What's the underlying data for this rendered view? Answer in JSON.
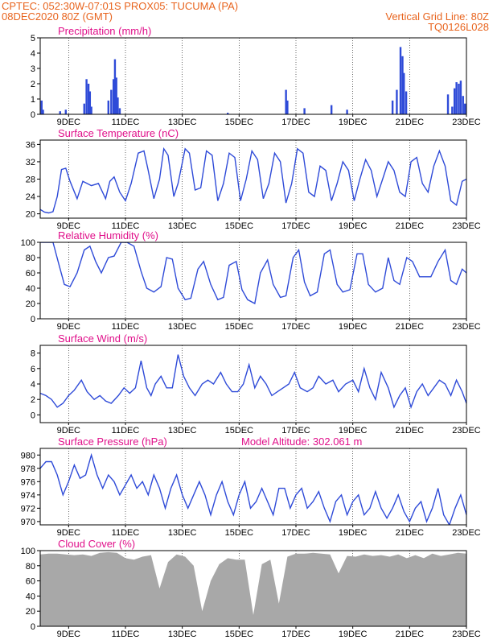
{
  "header": {
    "line1_left": "CPTEC:   052:30W-07:01S   PROX05: TUCUMA (PA)",
    "line2_left": "08DEC2020 80Z (GMT)",
    "line2_right": "Vertical Grid Line: 80Z",
    "line3_right": "TQ0126L028"
  },
  "colors": {
    "header": "#e8641e",
    "title": "#e0108a",
    "series": "#2f4bd8",
    "cloud": "#a8a8a8"
  },
  "x_axis": {
    "labels": [
      "9DEC",
      "11DEC",
      "13DEC",
      "15DEC",
      "17DEC",
      "19DEC",
      "21DEC",
      "23DEC"
    ],
    "label_days": [
      9,
      11,
      13,
      15,
      17,
      19,
      21,
      23
    ],
    "start_day": 8.0,
    "end_day": 23.0
  },
  "chart_data": [
    {
      "id": "precip",
      "type": "bar",
      "title": "Precipitation (mm/h)",
      "ylim": [
        0,
        5
      ],
      "yticks": [
        0,
        1,
        2,
        3,
        4,
        5
      ],
      "x": [
        8.05,
        8.1,
        8.7,
        8.9,
        9.55,
        9.63,
        9.7,
        9.75,
        9.8,
        10.4,
        10.5,
        10.58,
        10.63,
        10.68,
        10.73,
        10.8,
        14.6,
        16.65,
        16.7,
        17.3,
        18.25,
        18.8,
        20.4,
        20.55,
        20.68,
        20.75,
        20.8,
        20.88,
        22.35,
        22.5,
        22.58,
        22.65,
        22.73,
        22.8,
        22.88,
        22.95
      ],
      "values": [
        0.9,
        0.3,
        0.2,
        0.3,
        0.7,
        2.3,
        2.0,
        1.5,
        0.5,
        0.9,
        1.6,
        2.3,
        3.6,
        2.4,
        1.1,
        0.4,
        0.1,
        1.6,
        0.9,
        0.4,
        0.6,
        0.3,
        0.9,
        1.6,
        4.4,
        3.8,
        2.7,
        1.5,
        1.3,
        0.5,
        1.7,
        2.1,
        2.0,
        2.2,
        1.2,
        0.7
      ]
    },
    {
      "id": "temp",
      "type": "line",
      "title": "Surface Temperature (nC)",
      "ylim": [
        19,
        37
      ],
      "yticks": [
        20,
        24,
        28,
        32,
        36
      ],
      "x": [
        8.0,
        8.15,
        8.3,
        8.45,
        8.6,
        8.75,
        8.9,
        9.05,
        9.3,
        9.5,
        9.65,
        9.8,
        10.05,
        10.3,
        10.45,
        10.6,
        10.8,
        11.0,
        11.2,
        11.45,
        11.65,
        11.8,
        12.0,
        12.2,
        12.35,
        12.5,
        12.7,
        12.85,
        13.1,
        13.25,
        13.45,
        13.65,
        13.85,
        14.05,
        14.25,
        14.45,
        14.65,
        14.85,
        15.05,
        15.25,
        15.45,
        15.65,
        15.85,
        16.05,
        16.25,
        16.45,
        16.65,
        16.85,
        17.05,
        17.25,
        17.45,
        17.65,
        17.85,
        18.05,
        18.25,
        18.45,
        18.65,
        18.85,
        19.05,
        19.25,
        19.45,
        19.65,
        19.85,
        20.05,
        20.25,
        20.45,
        20.65,
        20.85,
        21.05,
        21.25,
        21.45,
        21.65,
        21.85,
        22.05,
        22.25,
        22.45,
        22.65,
        22.85,
        23.0
      ],
      "values": [
        21,
        20.4,
        20.2,
        20.5,
        24,
        30.2,
        30.5,
        27.5,
        23.5,
        27.5,
        27,
        26.5,
        27,
        23.5,
        27.5,
        28.5,
        25,
        23,
        27,
        34,
        34.5,
        30,
        23.5,
        28,
        35,
        33.5,
        24,
        27,
        35,
        34,
        25.5,
        26,
        34.5,
        33.5,
        23,
        27,
        34,
        33,
        23,
        28,
        34.5,
        32.5,
        23.5,
        27,
        34,
        32,
        22.5,
        27,
        35,
        34,
        25,
        24,
        31,
        30,
        23,
        27,
        32,
        30,
        23,
        28,
        32.5,
        30,
        24,
        28,
        32,
        30,
        25,
        24,
        32,
        33,
        27,
        25,
        31,
        34.5,
        31,
        23,
        22,
        27.5,
        28
      ]
    },
    {
      "id": "rh",
      "type": "line",
      "title": "Relative Humidity (%)",
      "ylim": [
        0,
        100
      ],
      "yticks": [
        0,
        20,
        40,
        60,
        80,
        100
      ],
      "x": [
        8.0,
        8.25,
        8.45,
        8.65,
        8.85,
        9.05,
        9.3,
        9.55,
        9.75,
        9.95,
        10.15,
        10.4,
        10.6,
        10.85,
        11.05,
        11.3,
        11.55,
        11.75,
        12.0,
        12.25,
        12.45,
        12.65,
        12.85,
        13.1,
        13.3,
        13.55,
        13.75,
        14.0,
        14.25,
        14.45,
        14.65,
        14.9,
        15.1,
        15.3,
        15.55,
        15.75,
        16.0,
        16.2,
        16.45,
        16.65,
        16.9,
        17.1,
        17.3,
        17.5,
        17.75,
        18.0,
        18.2,
        18.45,
        18.65,
        18.9,
        19.15,
        19.35,
        19.55,
        19.8,
        20.05,
        20.25,
        20.45,
        20.65,
        20.9,
        21.1,
        21.35,
        21.55,
        21.75,
        22.0,
        22.25,
        22.45,
        22.65,
        22.85,
        23.0
      ],
      "values": [
        100,
        100,
        100,
        72,
        45,
        42,
        60,
        90,
        95,
        75,
        60,
        80,
        82,
        100,
        100,
        95,
        62,
        40,
        35,
        42,
        80,
        78,
        40,
        25,
        27,
        65,
        75,
        45,
        25,
        28,
        70,
        75,
        38,
        25,
        20,
        60,
        77,
        45,
        28,
        30,
        80,
        90,
        48,
        30,
        35,
        85,
        90,
        45,
        35,
        38,
        85,
        85,
        45,
        35,
        40,
        80,
        50,
        45,
        80,
        75,
        55,
        55,
        55,
        75,
        90,
        50,
        45,
        65,
        60
      ]
    },
    {
      "id": "wind",
      "type": "line",
      "title": "Surface Wind (m/s)",
      "ylim": [
        -1,
        9
      ],
      "yticks": [
        0,
        2,
        4,
        6,
        8
      ],
      "x": [
        8.0,
        8.2,
        8.4,
        8.6,
        8.8,
        9.0,
        9.2,
        9.45,
        9.65,
        9.9,
        10.1,
        10.3,
        10.5,
        10.75,
        10.95,
        11.15,
        11.35,
        11.55,
        11.75,
        11.9,
        12.05,
        12.25,
        12.45,
        12.65,
        12.85,
        13.05,
        13.25,
        13.45,
        13.7,
        13.9,
        14.1,
        14.35,
        14.55,
        14.75,
        14.95,
        15.15,
        15.35,
        15.55,
        15.75,
        15.95,
        16.15,
        16.35,
        16.55,
        16.75,
        16.95,
        17.15,
        17.4,
        17.6,
        17.8,
        18.05,
        18.3,
        18.5,
        18.75,
        19.0,
        19.2,
        19.4,
        19.6,
        19.8,
        20.0,
        20.25,
        20.45,
        20.65,
        20.85,
        21.05,
        21.25,
        21.45,
        21.65,
        21.85,
        22.05,
        22.25,
        22.45,
        22.65,
        22.85,
        23.0
      ],
      "values": [
        2.8,
        2.5,
        2.0,
        1.0,
        1.5,
        2.5,
        3.2,
        4.5,
        3.0,
        2.0,
        2.5,
        1.8,
        1.5,
        2.5,
        3.5,
        2.8,
        3.5,
        7.0,
        3.5,
        2.5,
        4.0,
        5.0,
        3.5,
        3.5,
        7.8,
        5.0,
        3.5,
        2.5,
        4.0,
        4.5,
        4.0,
        5.5,
        4.0,
        3.0,
        3.0,
        4.0,
        6.5,
        3.5,
        5.0,
        4.0,
        2.5,
        3.0,
        3.5,
        4.0,
        5.5,
        3.5,
        3.0,
        3.5,
        5.0,
        4.0,
        4.5,
        3.0,
        4.0,
        4.5,
        3.0,
        6.0,
        3.5,
        2.0,
        5.5,
        3.5,
        1.0,
        2.5,
        3.5,
        1.0,
        3.0,
        4.0,
        2.5,
        3.5,
        4.5,
        4.0,
        2.5,
        4.5,
        3.0,
        1.5
      ]
    },
    {
      "id": "pres",
      "type": "line",
      "title": "Surface Pressure (hPa)",
      "annotation": "Model Altitude: 302.061  m",
      "ylim": [
        969.5,
        981
      ],
      "yticks": [
        970,
        972,
        974,
        976,
        978,
        980
      ],
      "x": [
        8.0,
        8.2,
        8.4,
        8.6,
        8.8,
        9.0,
        9.2,
        9.4,
        9.6,
        9.8,
        10.0,
        10.2,
        10.4,
        10.6,
        10.8,
        11.0,
        11.2,
        11.4,
        11.6,
        11.8,
        12.0,
        12.2,
        12.4,
        12.6,
        12.8,
        13.0,
        13.2,
        13.4,
        13.6,
        13.8,
        14.0,
        14.2,
        14.4,
        14.6,
        14.8,
        15.0,
        15.2,
        15.4,
        15.6,
        15.8,
        16.0,
        16.2,
        16.4,
        16.6,
        16.8,
        17.0,
        17.2,
        17.4,
        17.6,
        17.8,
        18.0,
        18.2,
        18.4,
        18.6,
        18.8,
        19.0,
        19.2,
        19.4,
        19.6,
        19.8,
        20.0,
        20.2,
        20.4,
        20.6,
        20.8,
        21.0,
        21.2,
        21.4,
        21.6,
        21.8,
        22.0,
        22.2,
        22.4,
        22.6,
        22.8,
        23.0
      ],
      "values": [
        978,
        979,
        979,
        977,
        974,
        976,
        978.5,
        976.5,
        977,
        980,
        977,
        975,
        977,
        976,
        974,
        975.5,
        977,
        975,
        976,
        974,
        977,
        975,
        972,
        975,
        977,
        974,
        972,
        974,
        976,
        974,
        971,
        974,
        976,
        973,
        971,
        974,
        976,
        972,
        973,
        975,
        973,
        971,
        975,
        975,
        972,
        974,
        975,
        972,
        973,
        974.5,
        972,
        970,
        973,
        974,
        971,
        973,
        974,
        971,
        972,
        974.5,
        972,
        970.5,
        972,
        974,
        971.5,
        970,
        972,
        973,
        970,
        972,
        975,
        971,
        969.5,
        972,
        974,
        971
      ]
    },
    {
      "id": "cloud",
      "type": "area",
      "title": "Cloud Cover (%)",
      "ylim": [
        0,
        100
      ],
      "yticks": [
        0,
        20,
        40,
        60,
        80,
        100
      ],
      "x": [
        8.0,
        8.3,
        8.6,
        8.9,
        9.2,
        9.5,
        9.8,
        10.1,
        10.4,
        10.7,
        11.0,
        11.3,
        11.6,
        11.9,
        12.2,
        12.5,
        12.8,
        13.1,
        13.4,
        13.7,
        14.0,
        14.3,
        14.6,
        14.9,
        15.2,
        15.5,
        15.8,
        16.1,
        16.4,
        16.7,
        17.0,
        17.3,
        17.6,
        17.9,
        18.2,
        18.5,
        18.8,
        19.1,
        19.4,
        19.7,
        20.0,
        20.3,
        20.6,
        20.9,
        21.2,
        21.5,
        21.8,
        22.1,
        22.4,
        22.7,
        23.0
      ],
      "values": [
        95,
        96,
        96,
        95,
        94,
        95,
        93,
        97,
        98,
        97,
        90,
        88,
        92,
        94,
        50,
        85,
        95,
        92,
        80,
        20,
        60,
        82,
        90,
        88,
        88,
        15,
        82,
        88,
        30,
        92,
        96,
        96,
        97,
        96,
        95,
        70,
        93,
        92,
        95,
        93,
        94,
        92,
        95,
        90,
        94,
        90,
        96,
        93,
        95,
        97,
        96
      ]
    }
  ]
}
